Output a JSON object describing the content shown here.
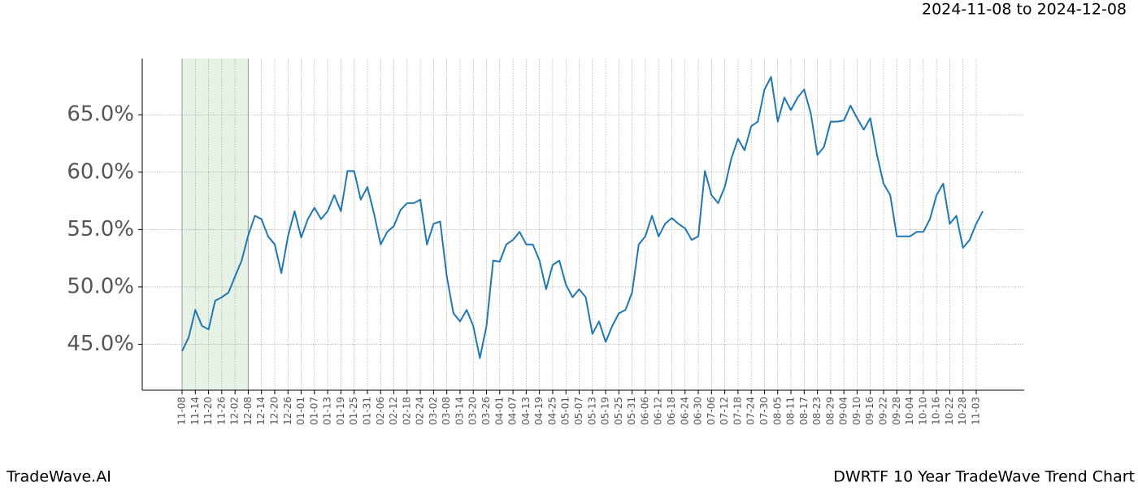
{
  "chart_data": {
    "type": "line",
    "date_range": "2024-11-08 to 2024-12-08",
    "footer_left": "TradeWave.AI",
    "footer_right": "DWRTF 10 Year TradeWave Trend Chart",
    "categories": [
      "11-08",
      null,
      "11-14",
      null,
      "11-20",
      null,
      "11-26",
      null,
      "12-02",
      null,
      "12-08",
      null,
      "12-14",
      null,
      "12-20",
      null,
      "12-26",
      null,
      "01-01",
      null,
      "01-07",
      null,
      "01-13",
      null,
      "01-19",
      null,
      "01-25",
      null,
      "01-31",
      null,
      "02-06",
      null,
      "02-12",
      null,
      "02-18",
      null,
      "02-24",
      null,
      "03-02",
      null,
      "03-08",
      null,
      "03-14",
      null,
      "03-20",
      null,
      "03-26",
      null,
      "04-01",
      null,
      "04-07",
      null,
      "04-13",
      null,
      "04-19",
      null,
      "04-25",
      null,
      "05-01",
      null,
      "05-07",
      null,
      "05-13",
      null,
      "05-19",
      null,
      "05-25",
      null,
      "05-31",
      null,
      "06-06",
      null,
      "06-12",
      null,
      "06-18",
      null,
      "06-24",
      null,
      "06-30",
      null,
      "07-06",
      null,
      "07-12",
      null,
      "07-18",
      null,
      "07-24",
      null,
      "07-30",
      null,
      "08-05",
      null,
      "08-11",
      null,
      "08-17",
      null,
      "08-23",
      null,
      "08-29",
      null,
      "09-04",
      null,
      "09-10",
      null,
      "09-16",
      null,
      "09-22",
      null,
      "09-28",
      null,
      "10-04",
      null,
      "10-10",
      null,
      "10-16",
      null,
      "10-22",
      null,
      "10-28",
      null,
      "11-03",
      null
    ],
    "series": [
      {
        "color": "#1f77b4",
        "values": [
          44.4,
          45.6,
          48.0,
          46.6,
          46.3,
          48.8,
          49.1,
          49.5,
          50.9,
          52.3,
          54.5,
          56.2,
          55.9,
          54.4,
          53.7,
          51.2,
          54.4,
          56.6,
          54.3,
          55.9,
          56.9,
          55.9,
          56.6,
          58.0,
          56.6,
          60.1,
          60.1,
          57.6,
          58.7,
          56.4,
          53.7,
          54.8,
          55.3,
          56.7,
          57.3,
          57.3,
          57.6,
          53.7,
          55.5,
          55.7,
          50.9,
          47.7,
          47.0,
          48.0,
          46.6,
          43.8,
          46.6,
          52.3,
          52.2,
          53.7,
          54.1,
          54.8,
          53.7,
          53.7,
          52.3,
          49.8,
          51.9,
          52.3,
          50.2,
          49.1,
          49.8,
          49.1,
          45.9,
          47.0,
          45.2,
          46.6,
          47.7,
          48.0,
          49.5,
          53.7,
          54.4,
          56.2,
          54.4,
          55.5,
          56.0,
          55.5,
          55.1,
          54.1,
          54.4,
          60.1,
          58.0,
          57.3,
          58.7,
          61.2,
          62.9,
          61.9,
          64.0,
          64.4,
          67.2,
          68.3,
          64.4,
          66.5,
          65.4,
          66.5,
          67.2,
          65.1,
          61.5,
          62.2,
          64.4,
          64.4,
          64.5,
          65.8,
          64.7,
          63.7,
          64.7,
          61.5,
          59.0,
          58.0,
          54.4,
          54.4,
          54.4,
          54.8,
          54.8,
          55.9,
          58.0,
          59.0,
          55.5,
          56.2,
          53.4,
          54.1,
          55.5,
          56.6
        ]
      }
    ],
    "ylim": [
      41.0,
      69.9
    ],
    "yticks": [
      {
        "value": 45,
        "label": "45.0%"
      },
      {
        "value": 50,
        "label": "50.0%"
      },
      {
        "value": 55,
        "label": "55.0%"
      },
      {
        "value": 60,
        "label": "60.0%"
      },
      {
        "value": 65,
        "label": "65.0%"
      }
    ],
    "grid": true,
    "highlight_color": "#e6f2e6"
  }
}
